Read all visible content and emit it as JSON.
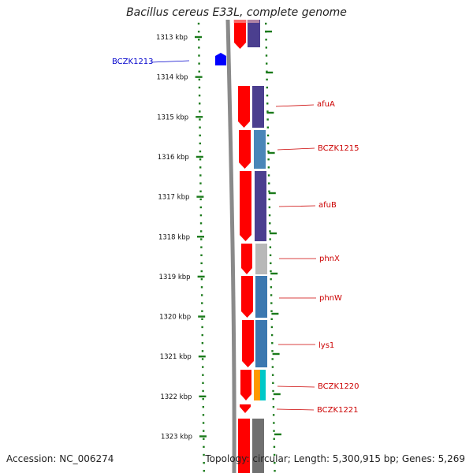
{
  "title": "Bacillus cereus E33L, complete genome",
  "footer": {
    "accession": "Accession: NC_006274",
    "topology": "Topology: circular; Length: 5,300,915 bp; Genes: 5,269"
  },
  "ruler": {
    "labels": [
      "1313 kbp",
      "1314 kbp",
      "1315 kbp",
      "1316 kbp",
      "1317 kbp",
      "1318 kbp",
      "1319 kbp",
      "1320 kbp",
      "1321 kbp",
      "1322 kbp",
      "1323 kbp"
    ]
  },
  "colors": {
    "ruler_tick": "#1a7a1a",
    "backbone": "#8a8a8a",
    "strand_gene": "#ff0000",
    "left_gene": "#0000ff",
    "label_red": "#cc0000",
    "label_blue": "#0000cc",
    "cog_purple": "#4b3f8f",
    "cog_steelblue": "#4a86b8",
    "cog_gray": "#b8b8b8",
    "cog_blue": "#3c78b0",
    "cog_orange": "#ff9900",
    "cog_cyan": "#00c8c8",
    "cog_darkgray": "#707070"
  },
  "genes": [
    {
      "name": "BCZK1213",
      "color": "label_blue"
    },
    {
      "name": "afuA",
      "color": "label_red"
    },
    {
      "name": "BCZK1215",
      "color": "label_red"
    },
    {
      "name": "afuB",
      "color": "label_red"
    },
    {
      "name": "phnX",
      "color": "label_red"
    },
    {
      "name": "phnW",
      "color": "label_red"
    },
    {
      "name": "lys1",
      "color": "label_red"
    },
    {
      "name": "BCZK1220",
      "color": "label_red"
    },
    {
      "name": "BCZK1221",
      "color": "label_red"
    }
  ]
}
